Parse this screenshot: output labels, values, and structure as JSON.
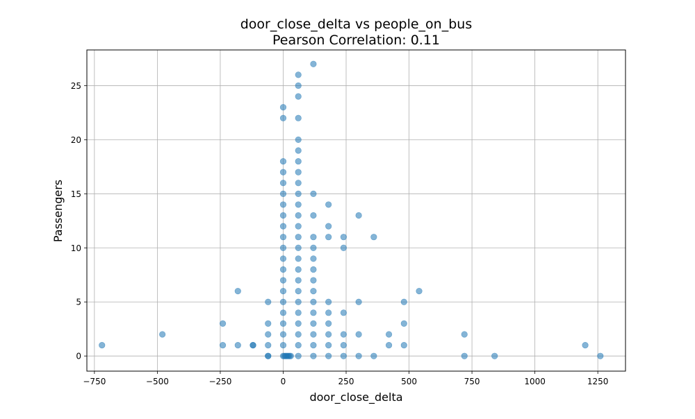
{
  "chart_data": {
    "type": "scatter",
    "title": "door_close_delta vs people_on_bus",
    "subtitle": "Pearson Correlation: 0.11",
    "xlabel": "door_close_delta",
    "ylabel": "Passengers",
    "xlim": [
      -780,
      1360
    ],
    "ylim": [
      -1.4,
      28.3
    ],
    "xticks": [
      -750,
      -500,
      -250,
      0,
      250,
      500,
      750,
      1000,
      1250
    ],
    "xtick_labels": [
      "−750",
      "−500",
      "−250",
      "0",
      "250",
      "500",
      "750",
      "1000",
      "1250"
    ],
    "yticks": [
      0,
      5,
      10,
      15,
      20,
      25
    ],
    "ytick_labels": [
      "0",
      "5",
      "10",
      "15",
      "20",
      "25"
    ],
    "grid": true,
    "marker_color": "#1f77b4",
    "marker_alpha": 0.55,
    "points": [
      [
        -720,
        1
      ],
      [
        -480,
        2
      ],
      [
        -240,
        3
      ],
      [
        -240,
        1
      ],
      [
        -180,
        6
      ],
      [
        -180,
        1
      ],
      [
        -120,
        1
      ],
      [
        -120,
        1
      ],
      [
        -60,
        5
      ],
      [
        -60,
        3
      ],
      [
        -60,
        2
      ],
      [
        -60,
        1
      ],
      [
        -60,
        0
      ],
      [
        -60,
        0
      ],
      [
        0,
        23
      ],
      [
        0,
        22
      ],
      [
        0,
        18
      ],
      [
        0,
        17
      ],
      [
        0,
        16
      ],
      [
        0,
        15
      ],
      [
        0,
        14
      ],
      [
        0,
        13
      ],
      [
        0,
        12
      ],
      [
        0,
        11
      ],
      [
        0,
        10
      ],
      [
        0,
        9
      ],
      [
        0,
        8
      ],
      [
        0,
        7
      ],
      [
        0,
        6
      ],
      [
        0,
        5
      ],
      [
        0,
        4
      ],
      [
        0,
        3
      ],
      [
        0,
        2
      ],
      [
        0,
        1
      ],
      [
        0,
        0
      ],
      [
        5,
        0
      ],
      [
        10,
        0
      ],
      [
        15,
        0
      ],
      [
        20,
        0
      ],
      [
        25,
        0
      ],
      [
        30,
        0
      ],
      [
        60,
        26
      ],
      [
        60,
        25
      ],
      [
        60,
        24
      ],
      [
        60,
        22
      ],
      [
        60,
        20
      ],
      [
        60,
        19
      ],
      [
        60,
        18
      ],
      [
        60,
        17
      ],
      [
        60,
        16
      ],
      [
        60,
        15
      ],
      [
        60,
        14
      ],
      [
        60,
        13
      ],
      [
        60,
        12
      ],
      [
        60,
        11
      ],
      [
        60,
        10
      ],
      [
        60,
        9
      ],
      [
        60,
        8
      ],
      [
        60,
        7
      ],
      [
        60,
        6
      ],
      [
        60,
        5
      ],
      [
        60,
        4
      ],
      [
        60,
        3
      ],
      [
        60,
        2
      ],
      [
        60,
        1
      ],
      [
        60,
        0
      ],
      [
        120,
        27
      ],
      [
        120,
        15
      ],
      [
        120,
        13
      ],
      [
        120,
        11
      ],
      [
        120,
        10
      ],
      [
        120,
        9
      ],
      [
        120,
        8
      ],
      [
        120,
        7
      ],
      [
        120,
        6
      ],
      [
        120,
        5
      ],
      [
        120,
        4
      ],
      [
        120,
        3
      ],
      [
        120,
        2
      ],
      [
        120,
        1
      ],
      [
        120,
        0
      ],
      [
        180,
        14
      ],
      [
        180,
        12
      ],
      [
        180,
        11
      ],
      [
        180,
        5
      ],
      [
        180,
        4
      ],
      [
        180,
        3
      ],
      [
        180,
        2
      ],
      [
        180,
        1
      ],
      [
        180,
        0
      ],
      [
        240,
        11
      ],
      [
        240,
        10
      ],
      [
        240,
        4
      ],
      [
        240,
        2
      ],
      [
        240,
        1
      ],
      [
        240,
        0
      ],
      [
        300,
        13
      ],
      [
        300,
        5
      ],
      [
        300,
        2
      ],
      [
        300,
        0
      ],
      [
        360,
        11
      ],
      [
        360,
        0
      ],
      [
        420,
        2
      ],
      [
        420,
        1
      ],
      [
        480,
        5
      ],
      [
        480,
        3
      ],
      [
        480,
        1
      ],
      [
        540,
        6
      ],
      [
        720,
        2
      ],
      [
        720,
        0
      ],
      [
        840,
        0
      ],
      [
        1200,
        1
      ],
      [
        1260,
        0
      ]
    ]
  }
}
